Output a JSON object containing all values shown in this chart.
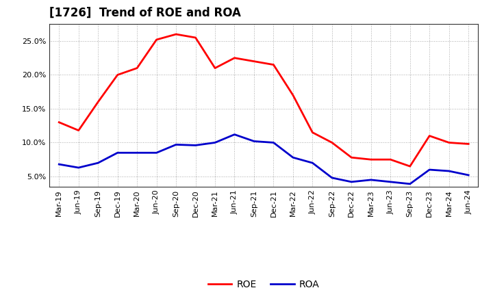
{
  "title": "[1726]  Trend of ROE and ROA",
  "x_labels": [
    "Mar-19",
    "Jun-19",
    "Sep-19",
    "Dec-19",
    "Mar-20",
    "Jun-20",
    "Sep-20",
    "Dec-20",
    "Mar-21",
    "Jun-21",
    "Sep-21",
    "Dec-21",
    "Mar-22",
    "Jun-22",
    "Sep-22",
    "Dec-22",
    "Mar-23",
    "Jun-23",
    "Sep-23",
    "Dec-23",
    "Mar-24",
    "Jun-24"
  ],
  "roe": [
    13.0,
    11.8,
    16.0,
    20.0,
    21.0,
    25.2,
    26.0,
    25.5,
    21.0,
    22.5,
    22.0,
    21.5,
    17.0,
    11.5,
    10.0,
    7.8,
    7.5,
    7.5,
    6.5,
    11.0,
    10.0,
    9.8
  ],
  "roa": [
    6.8,
    6.3,
    7.0,
    8.5,
    8.5,
    8.5,
    9.7,
    9.6,
    10.0,
    11.2,
    10.2,
    10.0,
    7.8,
    7.0,
    4.8,
    4.2,
    4.5,
    4.2,
    3.9,
    6.0,
    5.8,
    5.2
  ],
  "roe_color": "#ff0000",
  "roa_color": "#0000cc",
  "background_color": "#ffffff",
  "grid_color": "#aaaaaa",
  "ylim": [
    3.5,
    27.5
  ],
  "yticks": [
    5.0,
    10.0,
    15.0,
    20.0,
    25.0
  ],
  "legend_roe": "ROE",
  "legend_roa": "ROA",
  "linewidth": 2.0,
  "title_fontsize": 12,
  "tick_fontsize": 8,
  "legend_fontsize": 10
}
